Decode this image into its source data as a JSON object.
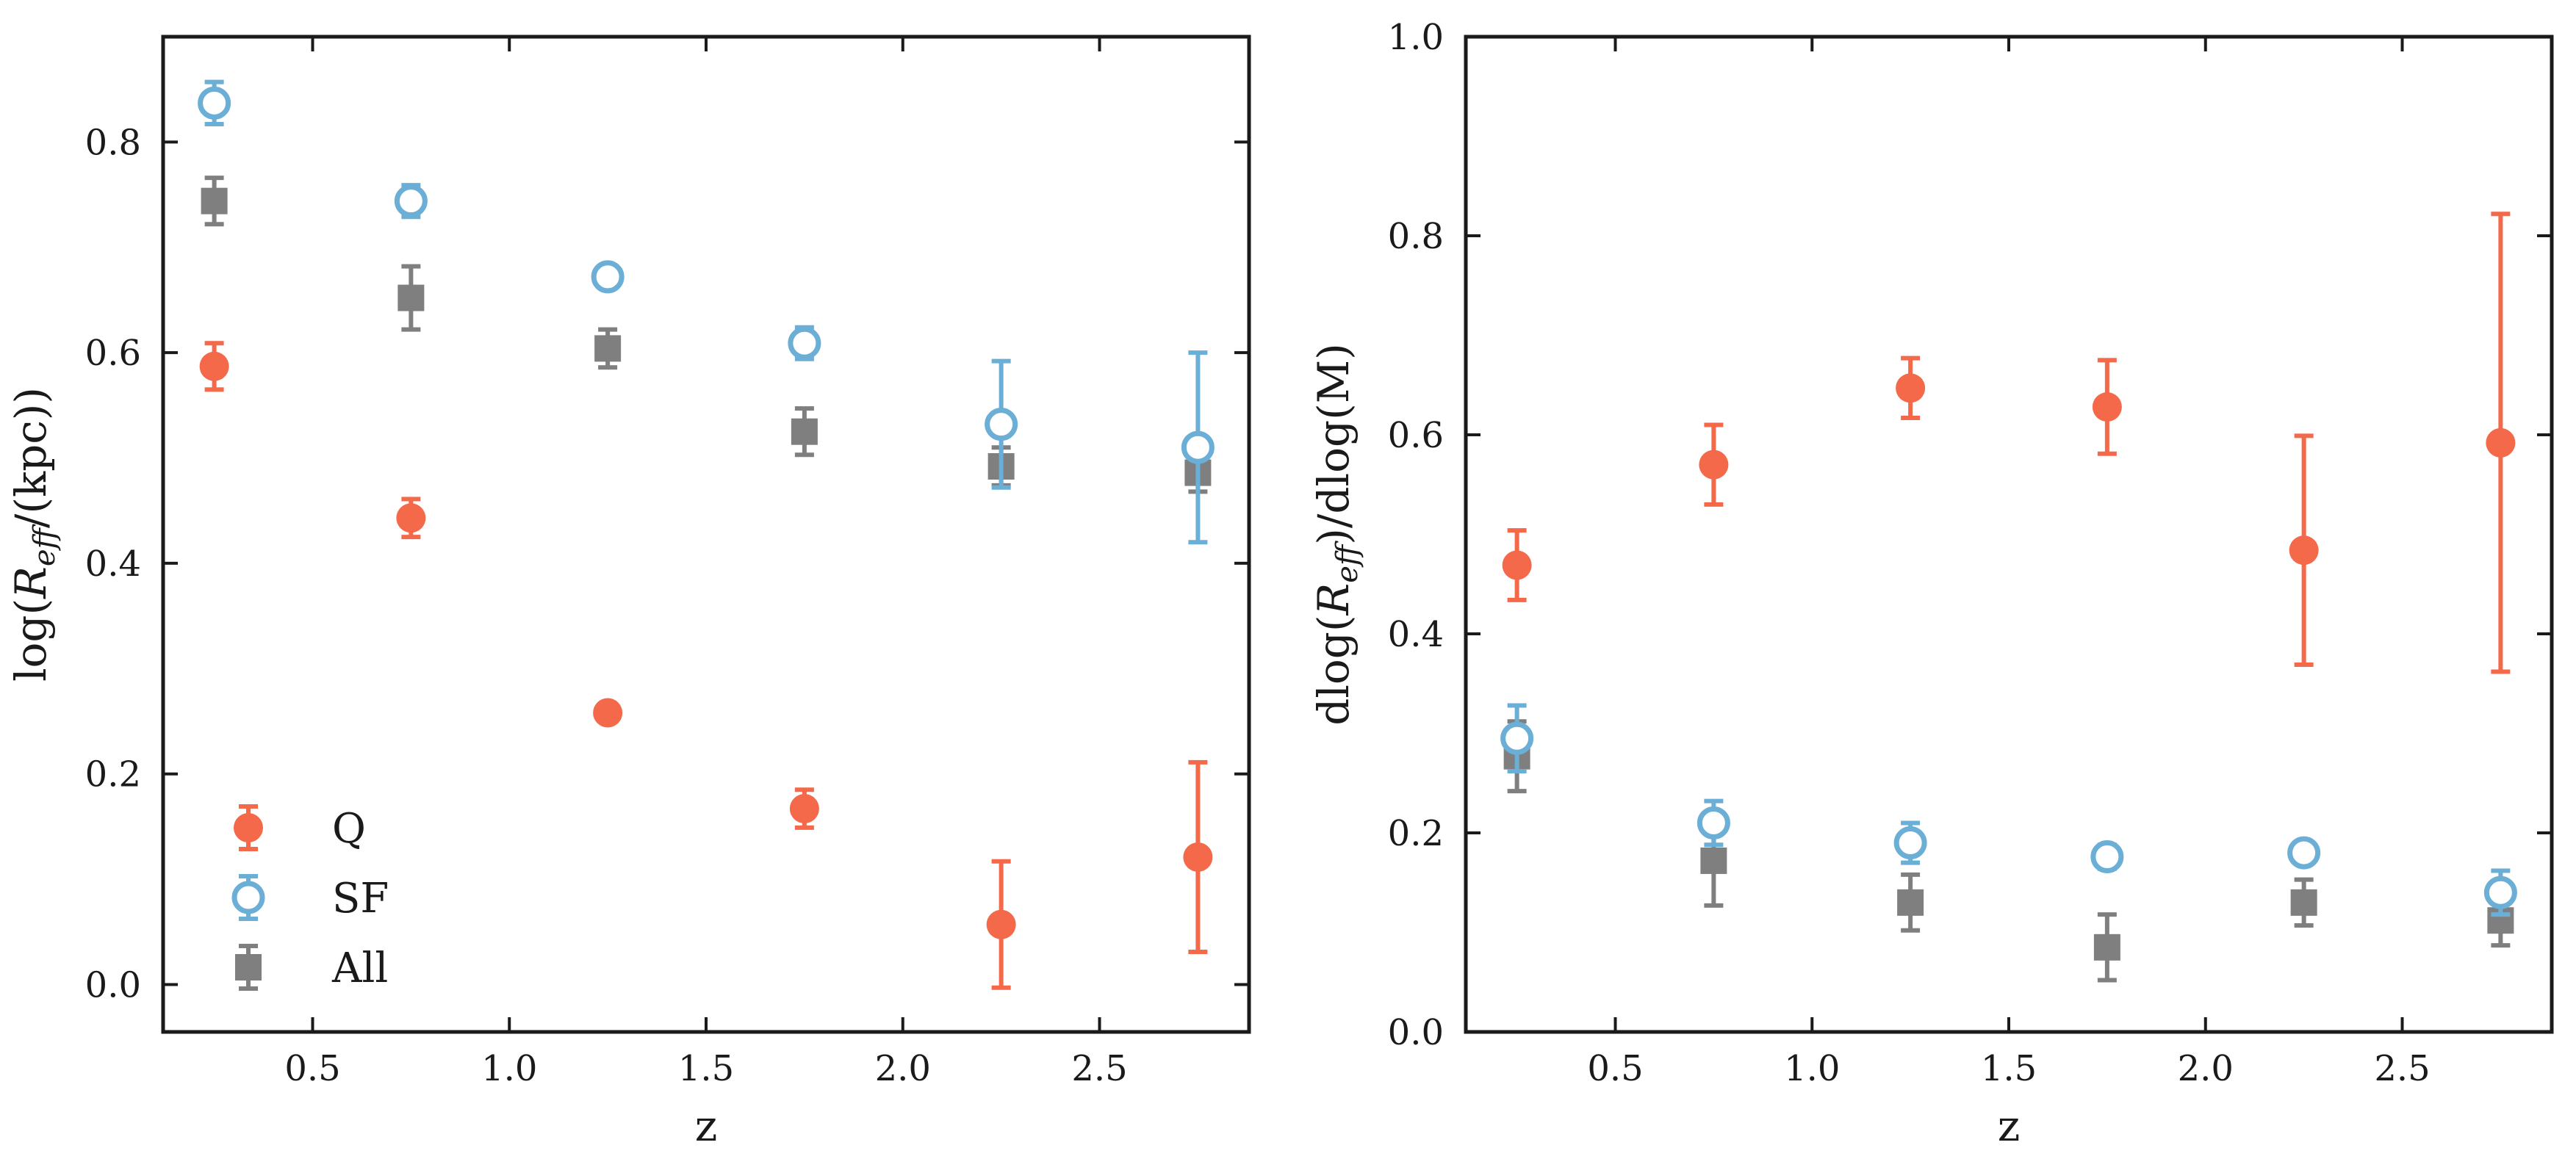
{
  "colors": {
    "Q": "#f4694a",
    "SF": "#6baed6",
    "All": "#7f7f7f",
    "axis": "#1a1a1a"
  },
  "legend": [
    {
      "key": "Q",
      "label": "Q",
      "marker": "filled-circle"
    },
    {
      "key": "SF",
      "label": "SF",
      "marker": "open-circle"
    },
    {
      "key": "All",
      "label": "All",
      "marker": "filled-square"
    }
  ],
  "chart_data": [
    {
      "type": "scatter",
      "title": "",
      "xlabel": "z",
      "ylabel_parts": [
        "log(",
        "R",
        "eff",
        "/(kpc))"
      ],
      "xlim": [
        0.12,
        2.88
      ],
      "ylim": [
        -0.045,
        0.9
      ],
      "xticks": [
        0.5,
        1.0,
        1.5,
        2.0,
        2.5
      ],
      "xtick_labels": [
        "0.5",
        "1.0",
        "1.5",
        "2.0",
        "2.5"
      ],
      "yticks": [
        0.0,
        0.2,
        0.4,
        0.6,
        0.8
      ],
      "ytick_labels": [
        "0.0",
        "0.2",
        "0.4",
        "0.6",
        "0.8"
      ],
      "legend_position": "lower-left",
      "series": [
        {
          "name": "Q",
          "x": [
            0.25,
            0.75,
            1.25,
            1.75,
            2.25,
            2.75
          ],
          "y": [
            0.587,
            0.443,
            0.258,
            0.167,
            0.057,
            0.121
          ],
          "yerr_low": [
            0.022,
            0.018,
            0.003,
            0.018,
            0.06,
            0.09
          ],
          "yerr_high": [
            0.022,
            0.018,
            0.003,
            0.018,
            0.06,
            0.09
          ]
        },
        {
          "name": "SF",
          "x": [
            0.25,
            0.75,
            1.25,
            1.75,
            2.25,
            2.75
          ],
          "y": [
            0.837,
            0.744,
            0.672,
            0.609,
            0.532,
            0.51
          ],
          "yerr_low": [
            0.02,
            0.015,
            0.008,
            0.015,
            0.06,
            0.09
          ],
          "yerr_high": [
            0.02,
            0.015,
            0.008,
            0.015,
            0.06,
            0.09
          ]
        },
        {
          "name": "All",
          "x": [
            0.25,
            0.75,
            1.25,
            1.75,
            2.25,
            2.75
          ],
          "y": [
            0.744,
            0.652,
            0.604,
            0.525,
            0.492,
            0.486
          ],
          "yerr_low": [
            0.022,
            0.03,
            0.018,
            0.022,
            0.018,
            0.018
          ],
          "yerr_high": [
            0.022,
            0.03,
            0.018,
            0.022,
            0.018,
            0.018
          ]
        }
      ]
    },
    {
      "type": "scatter",
      "title": "",
      "xlabel": "z",
      "ylabel_parts": [
        "dlog(",
        "R",
        "eff",
        ")/dlog(M)"
      ],
      "xlim": [
        0.12,
        2.88
      ],
      "ylim": [
        0.0,
        1.0
      ],
      "xticks": [
        0.5,
        1.0,
        1.5,
        2.0,
        2.5
      ],
      "xtick_labels": [
        "0.5",
        "1.0",
        "1.5",
        "2.0",
        "2.5"
      ],
      "yticks": [
        0.0,
        0.2,
        0.4,
        0.6,
        0.8,
        1.0
      ],
      "ytick_labels": [
        "0.0",
        "0.2",
        "0.4",
        "0.6",
        "0.8",
        "1.0"
      ],
      "series": [
        {
          "name": "Q",
          "x": [
            0.25,
            0.75,
            1.25,
            1.75,
            2.25,
            2.75
          ],
          "y": [
            0.469,
            0.57,
            0.647,
            0.628,
            0.484,
            0.592
          ],
          "yerr_low": [
            0.035,
            0.04,
            0.03,
            0.047,
            0.115,
            0.23
          ],
          "yerr_high": [
            0.035,
            0.04,
            0.03,
            0.047,
            0.115,
            0.23
          ]
        },
        {
          "name": "SF",
          "x": [
            0.25,
            0.75,
            1.25,
            1.75,
            2.25,
            2.75
          ],
          "y": [
            0.295,
            0.21,
            0.19,
            0.176,
            0.18,
            0.14
          ],
          "yerr_low": [
            0.033,
            0.022,
            0.02,
            0.012,
            0.01,
            0.022
          ],
          "yerr_high": [
            0.033,
            0.022,
            0.02,
            0.012,
            0.01,
            0.022
          ]
        },
        {
          "name": "All",
          "x": [
            0.25,
            0.75,
            1.25,
            1.75,
            2.25,
            2.75
          ],
          "y": [
            0.277,
            0.172,
            0.13,
            0.085,
            0.13,
            0.112
          ],
          "yerr_low": [
            0.035,
            0.045,
            0.028,
            0.033,
            0.023,
            0.025
          ],
          "yerr_high": [
            0.035,
            0.045,
            0.028,
            0.033,
            0.023,
            0.025
          ]
        }
      ]
    }
  ]
}
